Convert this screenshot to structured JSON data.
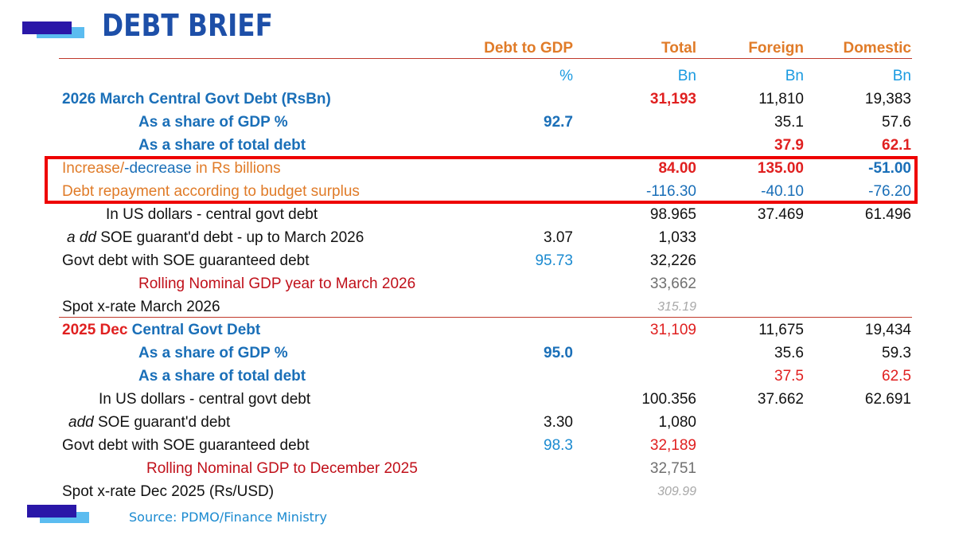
{
  "header": {
    "title": "DEBT BRIEF"
  },
  "columns": {
    "gdp": "Debt to GDP",
    "total": "Total",
    "foreign": "Foreign",
    "domestic": "Domestic"
  },
  "units": {
    "gdp": "%",
    "total": "Bn",
    "foreign": "Bn",
    "domestic": "Bn"
  },
  "section_2026": {
    "title": "2026 March Central Govt Debt  (RsBn)",
    "title_total": "31,193",
    "title_foreign": "11,810",
    "title_domestic": "19,383",
    "share_gdp_label": "As a share of GDP %",
    "share_gdp_value": "92.7",
    "share_gdp_foreign": "35.1",
    "share_gdp_domestic": "57.6",
    "share_total_label": "As a share of total debt",
    "share_total_foreign": "37.9",
    "share_total_domestic": "62.1",
    "change_label_a": "Increase/",
    "change_label_b": "-decrease",
    "change_label_c": " in Rs billions",
    "change_total": "84.00",
    "change_foreign": "135.00",
    "change_domestic": "-51.00",
    "repay_label": "Debt repayment according to budget surplus",
    "repay_total": "-116.30",
    "repay_foreign": "-40.10",
    "repay_domestic": "-76.20",
    "usd_label": "In US dollars - central govt debt",
    "usd_total": "98.965",
    "usd_foreign": "37.469",
    "usd_domestic": "61.496",
    "soe_label_prefix": "a dd",
    "soe_label": " SOE guarant'd debt - up to March 2026",
    "soe_gdp": "3.07",
    "soe_total": "1,033",
    "with_soe_label": "Govt debt with SOE guaranteed debt",
    "with_soe_gdp": "95.73",
    "with_soe_total": "32,226",
    "gdp_label": "Rolling Nominal GDP year to March 2026",
    "gdp_total": "33,662",
    "xrate_label": "Spot x-rate March 2026",
    "xrate_total": "315.19"
  },
  "section_2025": {
    "title_red": "2025 Dec",
    "title_blue": " Central Govt Debt",
    "title_total": "31,109",
    "title_foreign": "11,675",
    "title_domestic": "19,434",
    "share_gdp_label": "As a share of GDP %",
    "share_gdp_value": "95.0",
    "share_gdp_foreign": "35.6",
    "share_gdp_domestic": "59.3",
    "share_total_label": "As a share of total debt",
    "share_total_foreign": "37.5",
    "share_total_domestic": "62.5",
    "usd_label": "In US dollars - central govt debt",
    "usd_total": "100.356",
    "usd_foreign": "37.662",
    "usd_domestic": "62.691",
    "soe_label_prefix": "add",
    "soe_label": " SOE guarant'd debt",
    "soe_gdp": "3.30",
    "soe_total": "1,080",
    "with_soe_label": "Govt debt with SOE guaranteed debt",
    "with_soe_gdp": "98.3",
    "with_soe_total": "32,189",
    "gdp_label": "Rolling Nominal GDP to December 2025",
    "gdp_total": "32,751",
    "xrate_label": "Spot x-rate Dec 2025 (Rs/USD)",
    "xrate_total": "309.99"
  },
  "footer": {
    "source": "Source: PDMO/Finance Ministry"
  },
  "colors": {
    "brand_dark": "#2a17a8",
    "brand_light": "#5bbcf0",
    "title": "#1d4fa8",
    "highlight": "#ee0000"
  }
}
